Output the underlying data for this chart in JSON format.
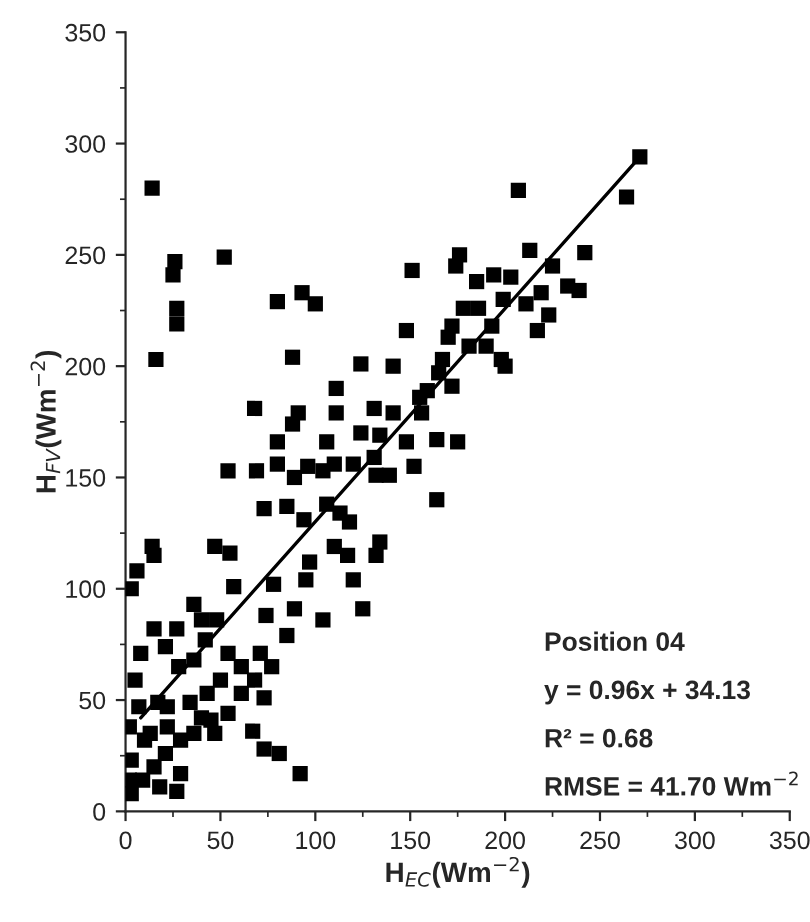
{
  "chart_data": {
    "type": "scatter",
    "xlabel": "H$_{EC}$(Wm$^{−2}$)",
    "ylabel": "H$_{FV}$(Wm$^{−2}$)",
    "xlim": [
      0,
      350
    ],
    "ylim": [
      0,
      350
    ],
    "xticks": [
      0,
      50,
      100,
      150,
      200,
      250,
      300,
      350
    ],
    "yticks": [
      0,
      50,
      100,
      150,
      200,
      250,
      300,
      350
    ],
    "grid": false,
    "legend": false,
    "marker": "square",
    "annotations": [
      "Position 04",
      "y = 0.96x + 34.13",
      "R² = 0.68",
      "RMSE = 41.70 Wm$^{−2}$"
    ],
    "series": [
      {
        "color": "#000000",
        "x": [
          14,
          16,
          26,
          25,
          27,
          27,
          52,
          68,
          80,
          88,
          93,
          100,
          111,
          124,
          141,
          148,
          151,
          176,
          174,
          185,
          194,
          203,
          207,
          213,
          242,
          264,
          271,
          239,
          233,
          225,
          223,
          217,
          219,
          211,
          200,
          198,
          199,
          193,
          190,
          186,
          181,
          178,
          172,
          170,
          167,
          165,
          172,
          159,
          155,
          131,
          111,
          141,
          156,
          91,
          88,
          80,
          106,
          124,
          134,
          148,
          164,
          175,
          54,
          69,
          80,
          89,
          96,
          104,
          110,
          120,
          131,
          139,
          152,
          164,
          132,
          73,
          85,
          94,
          106,
          113,
          118,
          110,
          117,
          120,
          125,
          104,
          97,
          95,
          89,
          85,
          78,
          74,
          71,
          134,
          132,
          55,
          47,
          57,
          3,
          6,
          14,
          15,
          15,
          27,
          8,
          21,
          36,
          40,
          48,
          42,
          28,
          36,
          54,
          61,
          68,
          61,
          54,
          47,
          36,
          22,
          29,
          73,
          77,
          67,
          73,
          81,
          92,
          27,
          5,
          7,
          10,
          3,
          9,
          15,
          21,
          29,
          18,
          13,
          2,
          22,
          34,
          43,
          45,
          50,
          40,
          2,
          3,
          17
        ],
        "values": [
          280,
          203,
          247,
          241,
          226,
          219,
          249,
          181,
          229,
          204,
          233,
          228,
          190,
          201,
          200,
          216,
          243,
          250,
          245,
          238,
          241,
          240,
          279,
          252,
          251,
          276,
          294,
          234,
          236,
          245,
          223,
          216,
          233,
          228,
          200,
          203,
          230,
          218,
          209,
          226,
          209,
          226,
          218,
          213,
          203,
          197,
          191,
          189,
          186,
          181,
          179,
          179,
          179,
          179,
          174,
          166,
          166,
          170,
          169,
          166,
          167,
          166,
          153,
          153,
          156,
          150,
          155,
          153,
          156,
          156,
          159,
          151,
          155,
          140,
          151,
          136,
          137,
          131,
          138,
          134,
          130,
          119,
          115,
          104,
          91,
          86,
          112,
          104,
          91,
          79,
          102,
          88,
          71,
          121,
          115,
          116,
          119,
          101,
          100,
          108,
          119,
          115,
          82,
          82,
          71,
          74,
          93,
          86,
          86,
          77,
          65,
          68,
          71,
          65,
          59,
          53,
          44,
          35,
          35,
          47,
          32,
          51,
          65,
          36,
          28,
          26,
          17,
          9,
          59,
          47,
          32,
          23,
          14,
          20,
          26,
          17,
          11,
          35,
          38,
          38,
          49,
          53,
          41,
          59,
          42,
          14,
          8,
          49
        ]
      },
      {
        "type": "line",
        "color": "#000000",
        "marker": "none",
        "x": [
          8,
          270
        ],
        "values": [
          42,
          293
        ]
      }
    ]
  }
}
